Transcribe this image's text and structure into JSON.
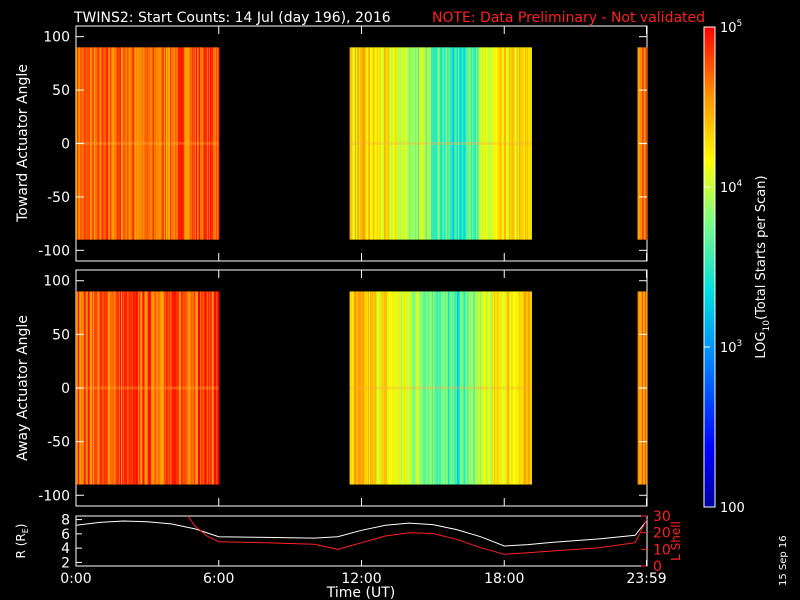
{
  "chart_data": {
    "type": "heatmap",
    "title": "TWINS2: Start Counts: 14 Jul (day 196), 2016",
    "note": "NOTE: Data Preliminary - Not validated",
    "panels": [
      {
        "ylabel": "Toward Actuator Angle",
        "ylim": [
          -110,
          110
        ],
        "y_data_range": [
          -90,
          90
        ],
        "yticks": [
          "100",
          "50",
          "0",
          "-50",
          "-100"
        ],
        "ytick_values": [
          100,
          50,
          0,
          -50,
          -100
        ]
      },
      {
        "ylabel": "Away Actuator Angle",
        "ylim": [
          -110,
          110
        ],
        "y_data_range": [
          -90,
          90
        ],
        "yticks": [
          "100",
          "50",
          "0",
          "-50",
          "-100"
        ],
        "ytick_values": [
          100,
          50,
          0,
          -50,
          -100
        ]
      }
    ],
    "data_intervals_hours": [
      [
        0.0,
        6.0
      ],
      [
        11.5,
        19.15
      ],
      [
        23.6,
        24.0
      ]
    ],
    "x_hours": [
      0,
      1,
      2,
      3,
      4,
      5,
      6,
      7,
      8,
      9,
      10,
      11,
      12,
      13,
      14,
      15,
      16,
      17,
      18,
      19,
      20,
      21,
      22,
      23,
      24
    ],
    "toward_log_counts": [
      4.7,
      4.65,
      4.72,
      4.6,
      4.68,
      4.75,
      4.8,
      null,
      null,
      null,
      null,
      null,
      4.3,
      4.15,
      3.95,
      3.75,
      3.45,
      3.9,
      4.2,
      4.25,
      null,
      null,
      null,
      null,
      4.6
    ],
    "away_log_counts": [
      4.75,
      4.7,
      4.78,
      4.72,
      4.74,
      4.8,
      4.85,
      null,
      null,
      null,
      null,
      null,
      4.35,
      4.2,
      4.0,
      3.8,
      3.5,
      3.95,
      4.25,
      4.3,
      null,
      null,
      null,
      null,
      4.65
    ],
    "xticks": [
      "0:00",
      "6:00",
      "12:00",
      "18:00",
      "23:59"
    ],
    "xtick_hours": [
      0,
      6,
      12,
      18,
      23.98
    ],
    "xlabel": "Time (UT)",
    "colorbar": {
      "label": "LOG10(Total Starts per Scan)",
      "label_pre": "LOG",
      "label_sub": "10",
      "label_post": "(Total Starts per Scan)",
      "ticks": [
        {
          "text": "100",
          "log": 2
        },
        {
          "base": "10",
          "exp": "3",
          "log": 3
        },
        {
          "base": "10",
          "exp": "4",
          "log": 4
        },
        {
          "base": "10",
          "exp": "5",
          "log": 5
        }
      ],
      "range_log": [
        2,
        5
      ]
    },
    "orbit": {
      "ylabel_left": "R (RE)",
      "ylabel_left_pre": "R (R",
      "ylabel_left_sub": "E",
      "ylabel_left_post": ")",
      "ylabel_right": "L Shell",
      "left_ticks": [
        "8",
        "6",
        "4",
        "2"
      ],
      "left_tick_values": [
        8,
        6,
        4,
        2
      ],
      "left_ylim": [
        1.5,
        8.5
      ],
      "right_ticks": [
        "30",
        "20",
        "10",
        "0"
      ],
      "right_tick_values": [
        30,
        20,
        10,
        0
      ],
      "right_ylim": [
        0,
        30
      ],
      "r_re": {
        "x": [
          0,
          1,
          2,
          3,
          4,
          5,
          6,
          8,
          10,
          11,
          12,
          13,
          14,
          15,
          16,
          17,
          18,
          19,
          20,
          22,
          23.5,
          24
        ],
        "y": [
          7.2,
          7.6,
          7.8,
          7.7,
          7.4,
          6.7,
          5.6,
          5.5,
          5.4,
          5.6,
          6.5,
          7.2,
          7.5,
          7.3,
          6.6,
          5.6,
          4.3,
          4.5,
          4.8,
          5.3,
          5.8,
          7.9
        ]
      },
      "l_shell": {
        "x": [
          4.7,
          5.0,
          5.5,
          6.0,
          8,
          10,
          11,
          12,
          13,
          14,
          15,
          16,
          17,
          18,
          19,
          20,
          22,
          23.5,
          24
        ],
        "y": [
          30,
          24,
          18,
          14.5,
          14,
          13,
          10,
          14,
          18,
          20,
          19.5,
          16,
          11,
          7,
          8,
          9,
          11,
          14,
          28
        ]
      }
    },
    "colors": {
      "r_re_line": "#ffffff",
      "l_shell_line": "#ff2020",
      "note": "#ff2020",
      "background": "#000000"
    },
    "grid": false,
    "legend": "none"
  },
  "footer": {
    "date_stamp": "15 Sep 16"
  }
}
